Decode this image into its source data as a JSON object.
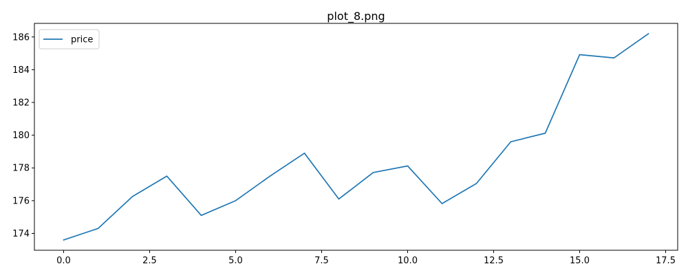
{
  "chart_data": {
    "type": "line",
    "title": "plot_8.png",
    "xlabel": "",
    "ylabel": "",
    "xlim": [
      -0.85,
      17.85
    ],
    "ylim": [
      172.97,
      186.83
    ],
    "xticks": [
      0.0,
      2.5,
      5.0,
      7.5,
      10.0,
      12.5,
      15.0,
      17.5
    ],
    "xtick_labels": [
      "0.0",
      "2.5",
      "5.0",
      "7.5",
      "10.0",
      "12.5",
      "15.0",
      "17.5"
    ],
    "yticks": [
      174,
      176,
      178,
      180,
      182,
      184,
      186
    ],
    "ytick_labels": [
      "174",
      "176",
      "178",
      "180",
      "182",
      "184",
      "186"
    ],
    "grid": false,
    "legend_position": "top-left",
    "series": [
      {
        "name": "price",
        "color": "#1f77b4",
        "x": [
          0,
          1,
          2,
          3,
          4,
          5,
          6,
          7,
          8,
          9,
          10,
          11,
          12,
          13,
          14,
          15,
          16,
          17
        ],
        "values": [
          173.6,
          174.3,
          176.25,
          177.5,
          175.1,
          176.0,
          177.5,
          178.9,
          176.1,
          177.72,
          178.12,
          175.82,
          177.05,
          179.6,
          180.12,
          184.92,
          184.72,
          186.2
        ]
      }
    ]
  }
}
